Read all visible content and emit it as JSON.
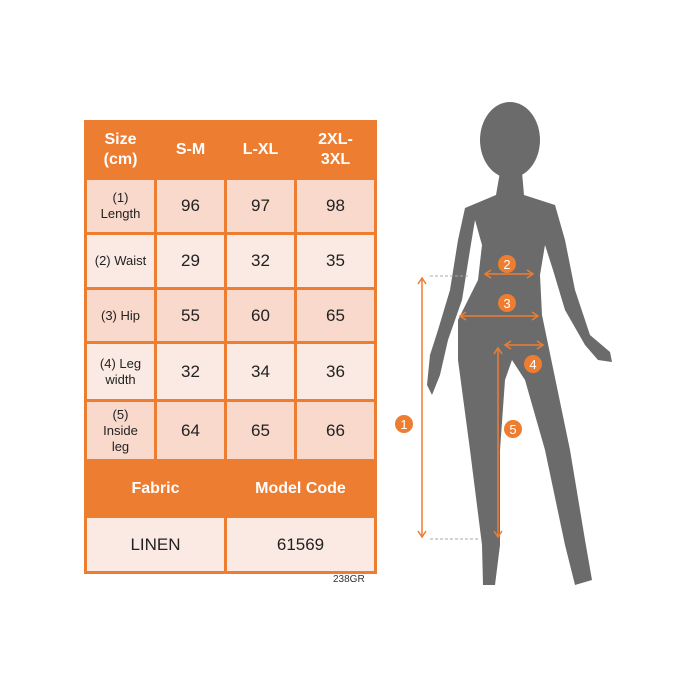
{
  "table": {
    "header": [
      "Size\n(cm)",
      "S-M",
      "L-XL",
      "2XL-\n3XL"
    ],
    "rows": [
      {
        "label": "(1)\nLength",
        "values": [
          "96",
          "97",
          "98"
        ]
      },
      {
        "label": "(2) Waist",
        "values": [
          "29",
          "32",
          "35"
        ]
      },
      {
        "label": "(3) Hip",
        "values": [
          "55",
          "60",
          "65"
        ]
      },
      {
        "label": "(4) Leg\nwidth",
        "values": [
          "32",
          "34",
          "36"
        ]
      },
      {
        "label": "(5)\nInside\nleg",
        "values": [
          "64",
          "65",
          "66"
        ]
      }
    ],
    "fabric_header": "Fabric",
    "model_header": "Model Code",
    "fabric": "LINEN",
    "model_code": "61569"
  },
  "product_code": "238GR",
  "markers": [
    "1",
    "2",
    "3",
    "4",
    "5"
  ],
  "colors": {
    "accent": "#ED7D31",
    "silhouette": "#6b6b6b"
  }
}
